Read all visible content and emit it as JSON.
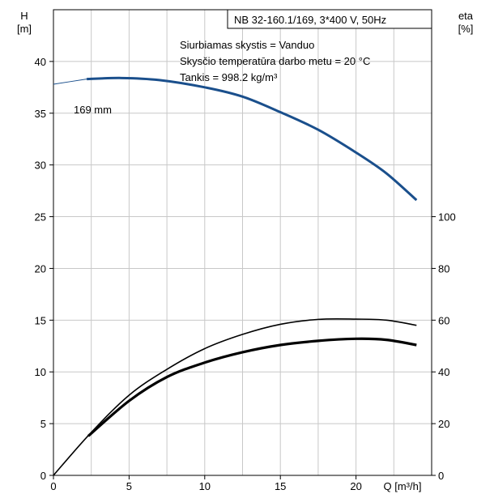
{
  "chart_data": {
    "type": "line",
    "title": "NB 32-160.1/169, 3*400 V, 50Hz",
    "annotations": [
      "Siurbiamas skystis = Vanduo",
      "Skysčio temperatūra darbo metu = 20 °C",
      "Tankis = 998.2 kg/m³"
    ],
    "xlabel": "Q [m³/h]",
    "ylabel_left": [
      "H",
      "[m]"
    ],
    "ylabel_right": [
      "eta",
      "[%]"
    ],
    "xlim": [
      0,
      25
    ],
    "ylim_left": [
      0,
      45
    ],
    "ylim_right": [
      0,
      180
    ],
    "x_ticks": [
      "0",
      "5",
      "10",
      "15",
      "20"
    ],
    "y_ticks_left": [
      "0",
      "5",
      "10",
      "15",
      "20",
      "25",
      "30",
      "35",
      "40"
    ],
    "y_ticks_right": [
      "0",
      "20",
      "40",
      "60",
      "80",
      "100"
    ],
    "grid": true,
    "series": [
      {
        "name": "169 mm",
        "axis": "left",
        "color": "#1a4f8c",
        "x": [
          0,
          2.2,
          4.5,
          7,
          10,
          12.5,
          15,
          17.5,
          20,
          22,
          24
        ],
        "y": [
          37.8,
          38.3,
          38.4,
          38.2,
          37.5,
          36.6,
          35.1,
          33.4,
          31.2,
          29.2,
          26.6
        ]
      },
      {
        "axis": "right",
        "color": "#000000",
        "x": [
          0,
          2.4,
          5,
          7.5,
          10,
          12.5,
          15,
          17.5,
          20,
          22,
          24
        ],
        "y": [
          0,
          16,
          31,
          41,
          49,
          54.5,
          58.4,
          60.3,
          60.4,
          60,
          58
        ]
      },
      {
        "axis": "left",
        "color": "#000000",
        "x": [
          2.3,
          5,
          7.5,
          10,
          12.5,
          15,
          17.5,
          20,
          22,
          24
        ],
        "y": [
          3.8,
          7.2,
          9.5,
          10.9,
          11.9,
          12.6,
          13.0,
          13.2,
          13.1,
          12.6
        ]
      }
    ]
  }
}
